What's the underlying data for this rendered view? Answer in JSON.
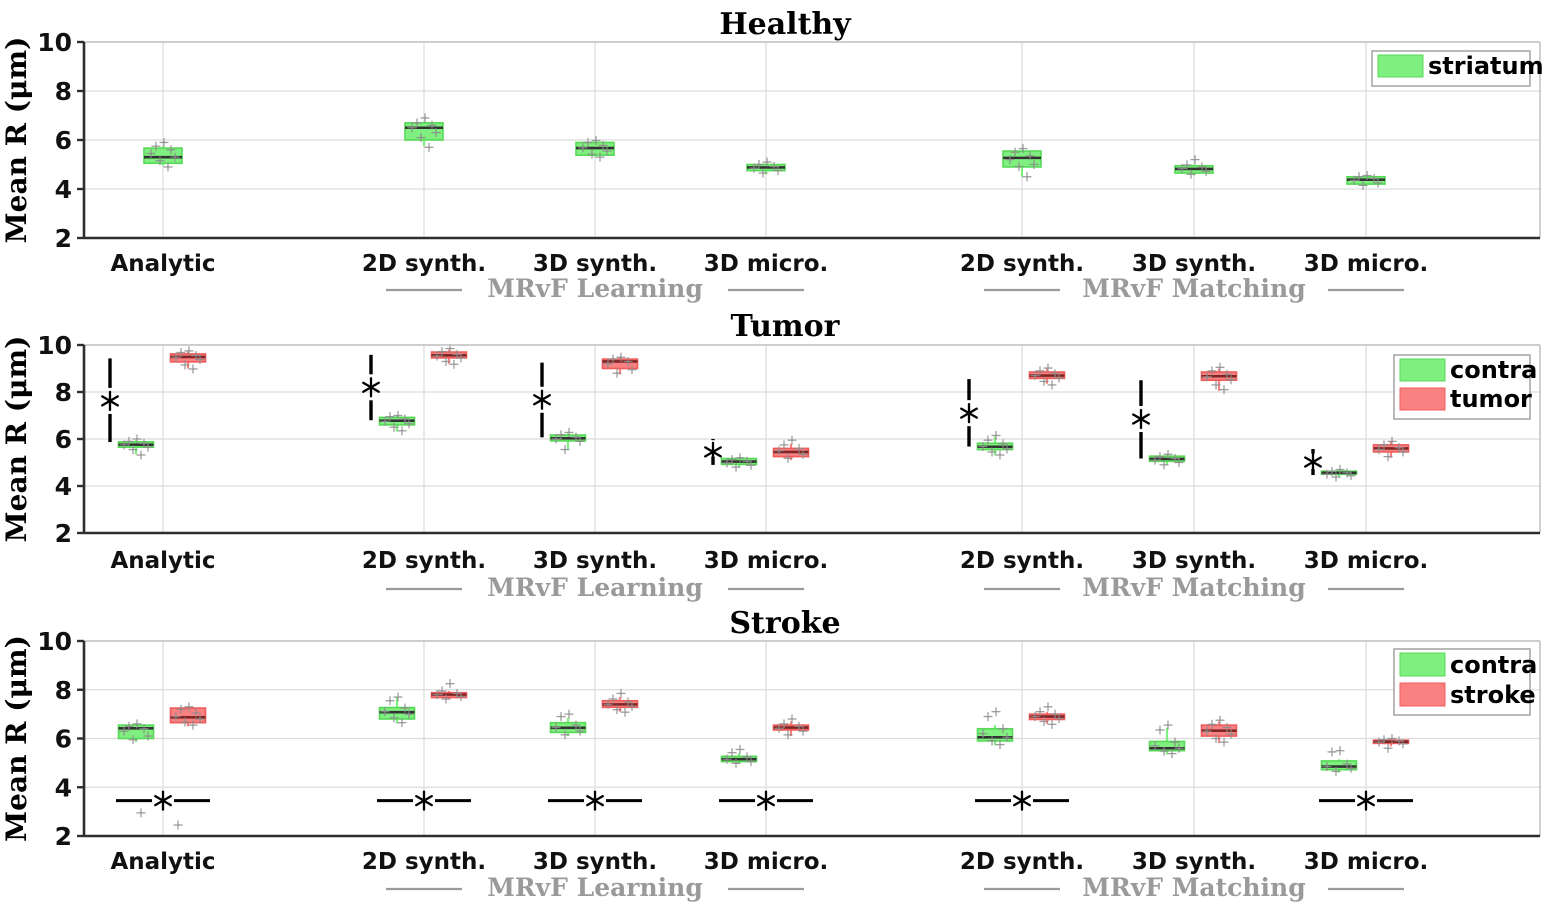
{
  "figure": {
    "ylabel": "Mean R (μm)",
    "ylim": [
      2,
      10
    ],
    "yticks": [
      2,
      4,
      6,
      8,
      10
    ],
    "categories": [
      "Analytic",
      "2D synth.",
      "3D synth.",
      "3D micro.",
      "2D synth.",
      "3D synth.",
      "3D micro."
    ],
    "group_annotations": [
      {
        "label": "MRvF Learning",
        "center_category": 2,
        "flank_categories": [
          1,
          3
        ]
      },
      {
        "label": "MRvF Matching",
        "center_category": 5,
        "flank_categories": [
          4,
          6
        ]
      }
    ],
    "sig_symbol": "*",
    "colors": {
      "green_fill": "#7ff07f",
      "green_edge": "#57d957",
      "green_median": "#333333",
      "red_fill": "#f98181",
      "red_edge": "#ee5c5c",
      "red_median": "#7e2727",
      "point": "#8c8c8c",
      "grid": "#dcdcdc",
      "axis_dark": "#2e2e2e",
      "axis_light": "#bdbdbd",
      "tick_label": "#111111",
      "group_label": "#9a9a9a",
      "sig": "#000000",
      "legend_border": "#a8a8a8"
    }
  },
  "chart_data": [
    {
      "type": "box",
      "title": "Healthy",
      "legend": [
        {
          "label": "striatum",
          "color": "green"
        }
      ],
      "series": [
        {
          "name": "striatum",
          "color": "green",
          "offset": 0,
          "boxes": [
            {
              "q1": 5.05,
              "q3": 5.67,
              "med": 5.3,
              "wlo": 4.95,
              "whi": 5.75,
              "pts": [
                5.9,
                5.75,
                5.6,
                5.45,
                5.3,
                5.15,
                4.9
              ]
            },
            {
              "q1": 6.0,
              "q3": 6.7,
              "med": 6.5,
              "wlo": 5.75,
              "whi": 6.75,
              "pts": [
                6.9,
                6.7,
                6.6,
                6.5,
                6.3,
                6.1,
                5.7
              ]
            },
            {
              "q1": 5.38,
              "q3": 5.9,
              "med": 5.67,
              "wlo": 5.3,
              "whi": 5.95,
              "pts": [
                5.98,
                5.9,
                5.78,
                5.68,
                5.55,
                5.42,
                5.3
              ]
            },
            {
              "q1": 4.75,
              "q3": 5.0,
              "med": 4.88,
              "wlo": 4.6,
              "whi": 5.05,
              "pts": [
                5.1,
                5.0,
                4.92,
                4.85,
                4.75,
                4.65
              ]
            },
            {
              "q1": 4.9,
              "q3": 5.55,
              "med": 5.27,
              "wlo": 4.5,
              "whi": 5.6,
              "pts": [
                5.65,
                5.5,
                5.35,
                5.2,
                5.0,
                4.92,
                4.5
              ]
            },
            {
              "q1": 4.65,
              "q3": 4.95,
              "med": 4.82,
              "wlo": 4.55,
              "whi": 5.0,
              "pts": [
                5.2,
                4.98,
                4.9,
                4.83,
                4.72,
                4.6
              ]
            },
            {
              "q1": 4.2,
              "q3": 4.5,
              "med": 4.38,
              "wlo": 4.1,
              "whi": 4.55,
              "pts": [
                4.55,
                4.5,
                4.43,
                4.35,
                4.25,
                4.15
              ]
            }
          ]
        }
      ],
      "significance": null
    },
    {
      "type": "box",
      "title": "Tumor",
      "legend": [
        {
          "label": "contra",
          "color": "green"
        },
        {
          "label": "tumor",
          "color": "red"
        }
      ],
      "series": [
        {
          "name": "contra",
          "color": "green",
          "offset": -27,
          "boxes": [
            {
              "q1": 5.65,
              "q3": 5.88,
              "med": 5.76,
              "wlo": 5.35,
              "whi": 5.95,
              "pts": [
                6.0,
                5.9,
                5.82,
                5.75,
                5.65,
                5.55,
                5.32
              ]
            },
            {
              "q1": 6.6,
              "q3": 6.92,
              "med": 6.78,
              "wlo": 6.32,
              "whi": 7.0,
              "pts": [
                7.0,
                6.95,
                6.85,
                6.75,
                6.65,
                6.5,
                6.35
              ]
            },
            {
              "q1": 5.92,
              "q3": 6.17,
              "med": 6.03,
              "wlo": 5.55,
              "whi": 6.25,
              "pts": [
                6.28,
                6.18,
                6.08,
                6.0,
                5.9,
                5.55
              ]
            },
            {
              "q1": 4.92,
              "q3": 5.17,
              "med": 5.04,
              "wlo": 4.8,
              "whi": 5.2,
              "pts": [
                5.2,
                5.12,
                5.05,
                4.98,
                4.88,
                4.8
              ]
            },
            {
              "q1": 5.55,
              "q3": 5.82,
              "med": 5.67,
              "wlo": 5.3,
              "whi": 6.1,
              "pts": [
                6.15,
                5.95,
                5.8,
                5.68,
                5.58,
                5.45,
                5.32
              ]
            },
            {
              "q1": 5.05,
              "q3": 5.27,
              "med": 5.15,
              "wlo": 4.9,
              "whi": 5.32,
              "pts": [
                5.35,
                5.25,
                5.17,
                5.1,
                5.0,
                4.9
              ]
            },
            {
              "q1": 4.5,
              "q3": 4.63,
              "med": 4.56,
              "wlo": 4.4,
              "whi": 4.7,
              "pts": [
                4.7,
                4.62,
                4.56,
                4.5,
                4.44,
                4.38
              ]
            }
          ]
        },
        {
          "name": "tumor",
          "color": "red",
          "offset": 25,
          "boxes": [
            {
              "q1": 9.28,
              "q3": 9.62,
              "med": 9.49,
              "wlo": 9.0,
              "whi": 9.72,
              "pts": [
                9.75,
                9.68,
                9.55,
                9.48,
                9.38,
                9.15,
                8.98
              ]
            },
            {
              "q1": 9.45,
              "q3": 9.7,
              "med": 9.56,
              "wlo": 9.2,
              "whi": 9.8,
              "pts": [
                9.85,
                9.72,
                9.6,
                9.53,
                9.45,
                9.3,
                9.18
              ]
            },
            {
              "q1": 9.0,
              "q3": 9.4,
              "med": 9.3,
              "wlo": 8.75,
              "whi": 9.48,
              "pts": [
                9.48,
                9.4,
                9.3,
                9.2,
                8.95,
                8.8
              ]
            },
            {
              "q1": 5.25,
              "q3": 5.6,
              "med": 5.45,
              "wlo": 5.1,
              "whi": 5.8,
              "pts": [
                5.95,
                5.75,
                5.6,
                5.5,
                5.35,
                5.18
              ]
            },
            {
              "q1": 8.58,
              "q3": 8.85,
              "med": 8.7,
              "wlo": 8.35,
              "whi": 9.0,
              "pts": [
                9.02,
                8.9,
                8.78,
                8.7,
                8.6,
                8.45,
                8.3
              ]
            },
            {
              "q1": 8.5,
              "q3": 8.85,
              "med": 8.67,
              "wlo": 8.05,
              "whi": 9.0,
              "pts": [
                9.05,
                8.9,
                8.75,
                8.65,
                8.52,
                8.3,
                8.1
              ]
            },
            {
              "q1": 5.45,
              "q3": 5.75,
              "med": 5.6,
              "wlo": 5.2,
              "whi": 5.9,
              "pts": [
                5.9,
                5.75,
                5.63,
                5.55,
                5.45,
                5.25
              ]
            }
          ]
        }
      ],
      "significance": {
        "style": "vertical",
        "items": [
          {
            "cat": 0,
            "from": 5.87,
            "to": 9.43,
            "star": 7.62
          },
          {
            "cat": 1,
            "from": 6.8,
            "to": 9.58,
            "star": 8.2
          },
          {
            "cat": 2,
            "from": 6.07,
            "to": 9.25,
            "star": 7.67
          },
          {
            "cat": 3,
            "from": 5.25,
            "to": 5.95,
            "star": 5.45
          },
          {
            "cat": 4,
            "from": 5.68,
            "to": 8.55,
            "star": 7.1
          },
          {
            "cat": 5,
            "from": 5.17,
            "to": 8.5,
            "star": 6.85
          },
          {
            "cat": 6,
            "from": 4.72,
            "to": 5.38,
            "star": 5.02
          }
        ]
      }
    },
    {
      "type": "box",
      "title": "Stroke",
      "legend": [
        {
          "label": "contra",
          "color": "green"
        },
        {
          "label": "stroke",
          "color": "red"
        }
      ],
      "series": [
        {
          "name": "contra",
          "color": "green",
          "offset": -27,
          "boxes": [
            {
              "q1": 6.0,
              "q3": 6.55,
              "med": 6.42,
              "wlo": 5.85,
              "whi": 6.6,
              "pts": [
                6.6,
                6.5,
                6.4,
                6.3,
                6.1,
                5.95,
                2.95
              ]
            },
            {
              "q1": 6.8,
              "q3": 7.27,
              "med": 7.08,
              "wlo": 6.62,
              "whi": 7.7,
              "pts": [
                7.7,
                7.55,
                7.25,
                7.1,
                7.0,
                6.85,
                6.65
              ]
            },
            {
              "q1": 6.25,
              "q3": 6.65,
              "med": 6.44,
              "wlo": 6.1,
              "whi": 6.85,
              "pts": [
                7.0,
                6.9,
                6.55,
                6.45,
                6.3,
                6.15
              ]
            },
            {
              "q1": 5.05,
              "q3": 5.27,
              "med": 5.15,
              "wlo": 4.95,
              "whi": 5.4,
              "pts": [
                5.55,
                5.42,
                5.25,
                5.15,
                5.05,
                4.98
              ]
            },
            {
              "q1": 5.9,
              "q3": 6.4,
              "med": 6.05,
              "wlo": 5.72,
              "whi": 6.55,
              "pts": [
                7.1,
                6.9,
                6.4,
                6.2,
                6.05,
                5.9,
                5.75
              ]
            },
            {
              "q1": 5.5,
              "q3": 5.88,
              "med": 5.6,
              "wlo": 5.35,
              "whi": 6.45,
              "pts": [
                6.55,
                6.35,
                5.85,
                5.7,
                5.6,
                5.48,
                5.38
              ]
            },
            {
              "q1": 4.72,
              "q3": 5.08,
              "med": 4.85,
              "wlo": 4.6,
              "whi": 5.15,
              "pts": [
                5.5,
                5.45,
                4.95,
                4.85,
                4.78,
                4.65
              ]
            }
          ]
        },
        {
          "name": "stroke",
          "color": "red",
          "offset": 25,
          "boxes": [
            {
              "q1": 6.65,
              "q3": 7.25,
              "med": 6.87,
              "wlo": 6.5,
              "whi": 7.3,
              "pts": [
                7.3,
                7.2,
                7.05,
                6.9,
                6.8,
                6.68,
                6.55,
                2.45
              ]
            },
            {
              "q1": 7.68,
              "q3": 7.88,
              "med": 7.8,
              "wlo": 7.6,
              "whi": 7.95,
              "pts": [
                8.25,
                7.95,
                7.85,
                7.8,
                7.72,
                7.62
              ]
            },
            {
              "q1": 7.28,
              "q3": 7.55,
              "med": 7.4,
              "wlo": 7.1,
              "whi": 7.7,
              "pts": [
                7.85,
                7.62,
                7.5,
                7.4,
                7.32,
                7.18,
                7.08
              ]
            },
            {
              "q1": 6.35,
              "q3": 6.55,
              "med": 6.45,
              "wlo": 6.1,
              "whi": 6.7,
              "pts": [
                6.8,
                6.6,
                6.5,
                6.42,
                6.3,
                6.15
              ]
            },
            {
              "q1": 6.78,
              "q3": 7.0,
              "med": 6.9,
              "wlo": 6.6,
              "whi": 7.1,
              "pts": [
                7.3,
                7.1,
                7.0,
                6.9,
                6.82,
                6.7,
                6.58
              ]
            },
            {
              "q1": 6.1,
              "q3": 6.55,
              "med": 6.32,
              "wlo": 5.82,
              "whi": 6.7,
              "pts": [
                6.75,
                6.58,
                6.45,
                6.3,
                6.18,
                6.0,
                5.85
              ]
            },
            {
              "q1": 5.8,
              "q3": 5.93,
              "med": 5.87,
              "wlo": 5.68,
              "whi": 6.0,
              "pts": [
                6.0,
                5.95,
                5.9,
                5.85,
                5.78,
                5.6
              ]
            }
          ]
        }
      ],
      "significance": {
        "style": "horizontal",
        "y": 3.45,
        "cats": [
          0,
          1,
          2,
          3,
          4,
          6
        ]
      }
    }
  ]
}
